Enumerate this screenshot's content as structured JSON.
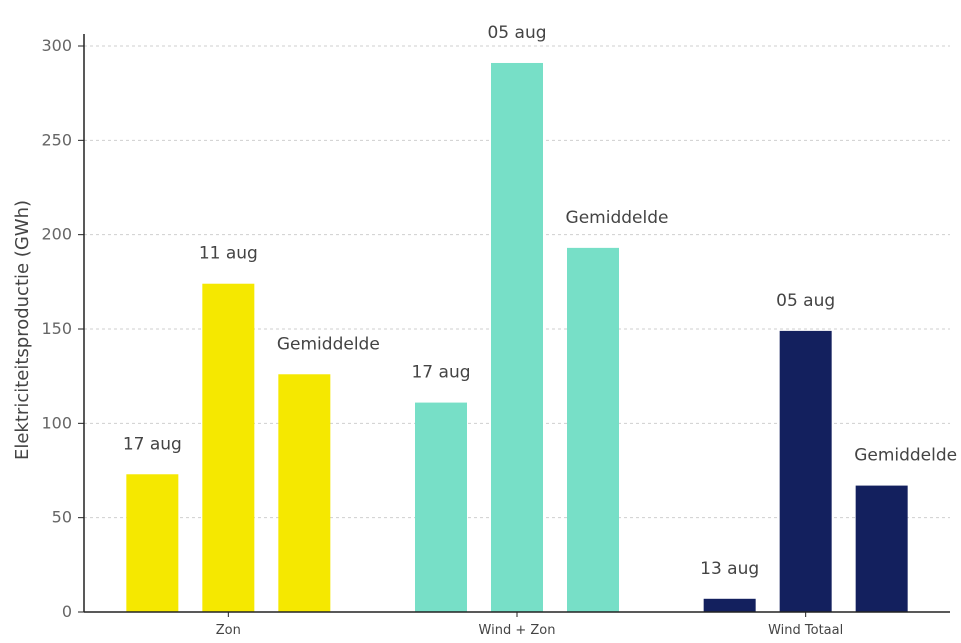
{
  "chart_data": {
    "type": "bar",
    "ylabel": "Elektriciteitsproductie (GWh)",
    "xlabel": "",
    "ylim": [
      0,
      300
    ],
    "yticks": [
      0,
      50,
      100,
      150,
      200,
      250,
      300
    ],
    "grid": "horizontal dashed",
    "groups": [
      {
        "category": "Zon",
        "color": "#f5e800",
        "bars": [
          {
            "label": "17 aug",
            "value": 73
          },
          {
            "label": "11 aug",
            "value": 174
          },
          {
            "label": "Gemiddelde",
            "value": 126
          }
        ]
      },
      {
        "category": "Wind + Zon",
        "color": "#77dfc7",
        "bars": [
          {
            "label": "17 aug",
            "value": 111
          },
          {
            "label": "05 aug",
            "value": 291
          },
          {
            "label": "Gemiddelde",
            "value": 193
          }
        ]
      },
      {
        "category": "Wind Totaal",
        "color": "#13205e",
        "bars": [
          {
            "label": "13 aug",
            "value": 7
          },
          {
            "label": "05 aug",
            "value": 149
          },
          {
            "label": "Gemiddelde",
            "value": 67
          }
        ]
      }
    ]
  }
}
